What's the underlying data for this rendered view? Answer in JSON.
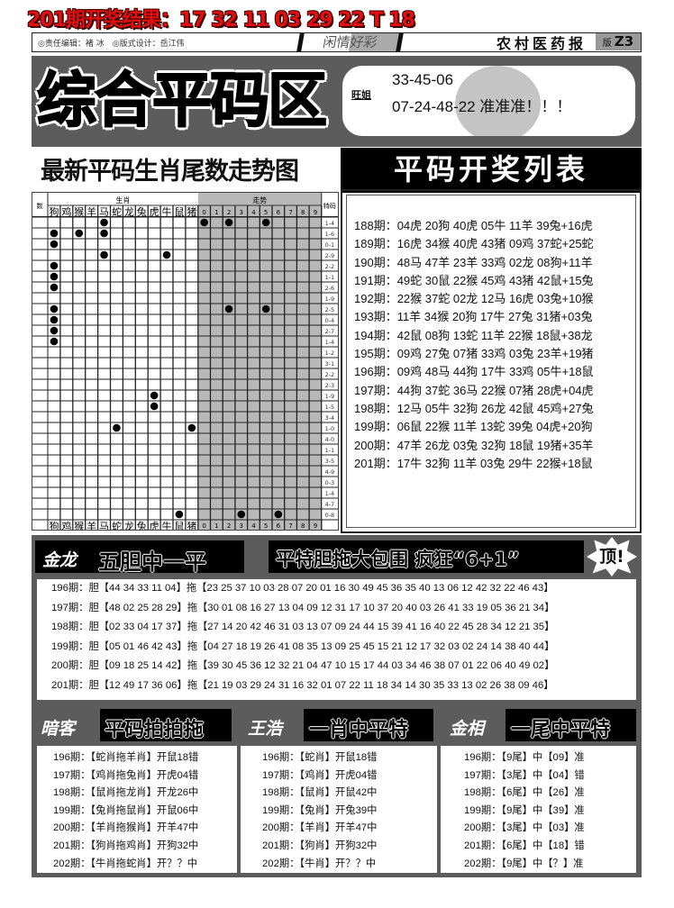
{
  "top_result": "201期开奖结果：17 32 11 03 29 22 T 18",
  "header": {
    "editor": "◎责任编辑：褚 冰　◎版式设计：岳江伟",
    "column": "闲情好彩",
    "paper": "农村医药报",
    "version_label": "版",
    "version": "Z3"
  },
  "banner": {
    "title": "综合平码区",
    "author": "旺姐",
    "line1": "33-45-06",
    "line2": "07-24-48-22 准准准！！！"
  },
  "trend": {
    "title": "最新平码生肖尾数走势图",
    "head_num": "数",
    "head_zodiac": "生肖",
    "head_trend": "走势",
    "head_code": "特码",
    "zodiacs": [
      "狗",
      "鸡",
      "猴",
      "羊",
      "马",
      "蛇",
      "龙",
      "兔",
      "虎",
      "牛",
      "鼠",
      "猪"
    ],
    "tails": [
      "0",
      "1",
      "2",
      "3",
      "4",
      "5",
      "6",
      "7",
      "8",
      "9"
    ],
    "rows": [
      {
        "code": "1-4",
        "zodiac": [
          "马"
        ],
        "tails": [
          0,
          2,
          5
        ]
      },
      {
        "code": "1-6",
        "zodiac": [
          "狗",
          "猴",
          "马"
        ],
        "tails": []
      },
      {
        "code": "0-1",
        "zodiac": [
          "狗"
        ],
        "tails": []
      },
      {
        "code": "2-9",
        "zodiac": [
          "马",
          "牛"
        ],
        "tails": []
      },
      {
        "code": "2-2",
        "zodiac": [
          "狗"
        ],
        "tails": []
      },
      {
        "code": "1-1",
        "zodiac": [
          "狗"
        ],
        "tails": []
      },
      {
        "code": "2-6",
        "zodiac": [
          "狗"
        ],
        "tails": []
      },
      {
        "code": "1-9",
        "zodiac": [],
        "tails": []
      },
      {
        "code": "2-5",
        "zodiac": [
          "狗"
        ],
        "tails": [
          2,
          5
        ]
      },
      {
        "code": "0-4",
        "zodiac": [
          "狗"
        ],
        "tails": []
      },
      {
        "code": "2-7",
        "zodiac": [
          "狗"
        ],
        "tails": []
      },
      {
        "code": "1-4",
        "zodiac": [
          "狗"
        ],
        "tails": []
      },
      {
        "code": "1-2",
        "zodiac": [],
        "tails": []
      },
      {
        "code": "3-1",
        "zodiac": [],
        "tails": []
      },
      {
        "code": "2-2",
        "zodiac": [],
        "tails": []
      },
      {
        "code": "2-3",
        "zodiac": [],
        "tails": []
      },
      {
        "code": "1-9",
        "zodiac": [
          "虎"
        ],
        "tails": []
      },
      {
        "code": "1-5",
        "zodiac": [
          "虎"
        ],
        "tails": []
      },
      {
        "code": "3-4",
        "zodiac": [],
        "tails": []
      },
      {
        "code": "1-0",
        "zodiac": [
          "蛇",
          "猪"
        ],
        "tails": []
      },
      {
        "code": "4-0",
        "zodiac": [],
        "tails": []
      },
      {
        "code": "1-1",
        "zodiac": [],
        "tails": []
      },
      {
        "code": "3-5",
        "zodiac": [],
        "tails": []
      },
      {
        "code": "4-9",
        "zodiac": [],
        "tails": []
      },
      {
        "code": "0-3",
        "zodiac": [],
        "tails": []
      },
      {
        "code": "1-4",
        "zodiac": [],
        "tails": []
      },
      {
        "code": "4-7",
        "zodiac": [],
        "tails": []
      },
      {
        "code": "0-8",
        "zodiac": [
          "鼠"
        ],
        "tails": [
          3,
          6
        ]
      }
    ]
  },
  "draw_list": {
    "title": "平码开奖列表",
    "rows": [
      "188期：04虎 20狗 40虎 05牛 11羊 39兔+16虎",
      "189期：16虎 34猴 40虎 43猪 09鸡 37蛇+25蛇",
      "190期：48马 47羊 23羊 33鸡 02龙 08狗+11羊",
      "191期：49蛇 30鼠 22猴 45鸡 43猪 42鼠+15兔",
      "192期：22猴 37蛇 02龙 12马 16虎 03兔+10猴",
      "193期：11羊 34猴 20狗 17牛 27兔 31猪+03兔",
      "194期：42鼠 08狗 13蛇 11羊 22猴 18鼠+38龙",
      "195期：09鸡 27兔 07猪 33鸡 03兔 23羊+19猪",
      "196期：09鸡 48马 44狗 17牛 33鸡 05牛+18鼠",
      "197期：44狗 37蛇 36马 22猴 07猪 28虎+04虎",
      "198期：12马 05牛 32狗 26龙 42鼠 45鸡+27兔",
      "199期：06鼠 22猴 11羊 13蛇 39兔 04虎+20狗",
      "200期：47羊 26龙 03兔 32狗 18鼠 19猪+35羊",
      "201期：17牛 32狗 11羊 03兔 29牛 22猴+18鼠"
    ]
  },
  "five_dan": {
    "author": "金龙",
    "title": "五胆中一平",
    "slogan": "平特胆拖大包围 疯狂“6+1”",
    "badge": "顶!",
    "rows": [
      "196期：胆【44 34 33 11 04】拖【23 25 37 10 03 28 07 20 01 16 30 49 45 36 35 40 13 06 12 42 32 22 46 43】",
      "197期：胆【48 02 25 28 29】拖【30 01 08 16 27 13 04 09 12 31 17 10 37 20 40 03 26 41 33 19 05 36 21 34】",
      "198期：胆【02 33 04 17 37】拖【27 14 20 42 46 31 03 13 07 09 24 44 15 39 41 16 40 22 45 28 34 12 21 35】",
      "199期：胆【05 01 46 42 43】拖【04 27 18 19 26 41 08 35 13 09 25 45 15 21 12 17 32 03 02 24 14 38 40 44】",
      "200期：胆【09 18 25 14 42】拖【39 30 45 36 12 32 21 04 47 10 15 17 44 03 34 46 38 07 01 22 06 40 49 02】",
      "201期：胆【12 49 17 36 06】拖【21 19 03 29 24 31 16 32 01 07 22 11 18 34 14 30 35 33 13 02 26 38 09 46】"
    ]
  },
  "columns": [
    {
      "author": "暗客",
      "title": "平码拍拍拖",
      "rows": [
        "196期：【蛇肖拖羊肖】开鼠18错",
        "197期：【鸡肖拖兔肖】开虎04错",
        "198期：【鼠肖拖龙肖】开龙26中",
        "199期：【兔肖拖鼠肖】开鼠06中",
        "200期：【羊肖拖猴肖】开羊47中",
        "201期：【狗肖拖鸡肖】开狗32中",
        "202期：【牛肖拖蛇肖】开？？中"
      ]
    },
    {
      "author": "王浩",
      "title": "一肖中平特",
      "rows": [
        "196期：【蛇肖】开鼠18错",
        "197期：【鸡肖】开虎04错",
        "198期：【鼠肖】开鼠42中",
        "199期：【兔肖】开兔39中",
        "200期：【羊肖】开羊47中",
        "201期：【狗肖】开狗32中",
        "202期：【牛肖】开？？中"
      ]
    },
    {
      "author": "金相",
      "title": "一尾中平特",
      "rows": [
        "196期：【9尾】中【09】准",
        "197期：【3尾】中【04】错",
        "198期：【6尾】中【26】准",
        "199期：【9尾】中【39】准",
        "200期：【3尾】中【03】准",
        "201期：【6尾】中【18】错",
        "202期：【9尾】中【？】准"
      ]
    }
  ],
  "colors": {
    "title_red": "#e01010",
    "panel_gray": "#5c5c5c",
    "tail_gray": "#b8b8b8"
  }
}
